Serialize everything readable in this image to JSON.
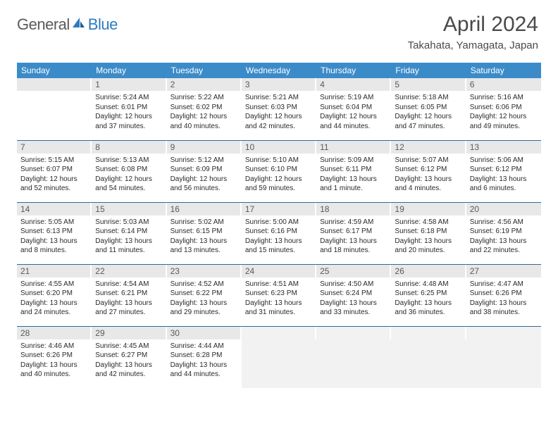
{
  "brand": {
    "part1": "General",
    "part2": "Blue"
  },
  "title": "April 2024",
  "location": "Takahata, Yamagata, Japan",
  "colors": {
    "header_bg": "#3b8bc9",
    "header_text": "#ffffff",
    "row_divider": "#2b6a9e",
    "daynum_bg": "#e8e8e8",
    "empty_bg": "#f2f2f2",
    "logo_gray": "#5a5a5a",
    "logo_blue": "#2b7bbf"
  },
  "weekdays": [
    "Sunday",
    "Monday",
    "Tuesday",
    "Wednesday",
    "Thursday",
    "Friday",
    "Saturday"
  ],
  "weeks": [
    [
      {
        "day": "",
        "lines": []
      },
      {
        "day": "1",
        "lines": [
          "Sunrise: 5:24 AM",
          "Sunset: 6:01 PM",
          "Daylight: 12 hours and 37 minutes."
        ]
      },
      {
        "day": "2",
        "lines": [
          "Sunrise: 5:22 AM",
          "Sunset: 6:02 PM",
          "Daylight: 12 hours and 40 minutes."
        ]
      },
      {
        "day": "3",
        "lines": [
          "Sunrise: 5:21 AM",
          "Sunset: 6:03 PM",
          "Daylight: 12 hours and 42 minutes."
        ]
      },
      {
        "day": "4",
        "lines": [
          "Sunrise: 5:19 AM",
          "Sunset: 6:04 PM",
          "Daylight: 12 hours and 44 minutes."
        ]
      },
      {
        "day": "5",
        "lines": [
          "Sunrise: 5:18 AM",
          "Sunset: 6:05 PM",
          "Daylight: 12 hours and 47 minutes."
        ]
      },
      {
        "day": "6",
        "lines": [
          "Sunrise: 5:16 AM",
          "Sunset: 6:06 PM",
          "Daylight: 12 hours and 49 minutes."
        ]
      }
    ],
    [
      {
        "day": "7",
        "lines": [
          "Sunrise: 5:15 AM",
          "Sunset: 6:07 PM",
          "Daylight: 12 hours and 52 minutes."
        ]
      },
      {
        "day": "8",
        "lines": [
          "Sunrise: 5:13 AM",
          "Sunset: 6:08 PM",
          "Daylight: 12 hours and 54 minutes."
        ]
      },
      {
        "day": "9",
        "lines": [
          "Sunrise: 5:12 AM",
          "Sunset: 6:09 PM",
          "Daylight: 12 hours and 56 minutes."
        ]
      },
      {
        "day": "10",
        "lines": [
          "Sunrise: 5:10 AM",
          "Sunset: 6:10 PM",
          "Daylight: 12 hours and 59 minutes."
        ]
      },
      {
        "day": "11",
        "lines": [
          "Sunrise: 5:09 AM",
          "Sunset: 6:11 PM",
          "Daylight: 13 hours and 1 minute."
        ]
      },
      {
        "day": "12",
        "lines": [
          "Sunrise: 5:07 AM",
          "Sunset: 6:12 PM",
          "Daylight: 13 hours and 4 minutes."
        ]
      },
      {
        "day": "13",
        "lines": [
          "Sunrise: 5:06 AM",
          "Sunset: 6:12 PM",
          "Daylight: 13 hours and 6 minutes."
        ]
      }
    ],
    [
      {
        "day": "14",
        "lines": [
          "Sunrise: 5:05 AM",
          "Sunset: 6:13 PM",
          "Daylight: 13 hours and 8 minutes."
        ]
      },
      {
        "day": "15",
        "lines": [
          "Sunrise: 5:03 AM",
          "Sunset: 6:14 PM",
          "Daylight: 13 hours and 11 minutes."
        ]
      },
      {
        "day": "16",
        "lines": [
          "Sunrise: 5:02 AM",
          "Sunset: 6:15 PM",
          "Daylight: 13 hours and 13 minutes."
        ]
      },
      {
        "day": "17",
        "lines": [
          "Sunrise: 5:00 AM",
          "Sunset: 6:16 PM",
          "Daylight: 13 hours and 15 minutes."
        ]
      },
      {
        "day": "18",
        "lines": [
          "Sunrise: 4:59 AM",
          "Sunset: 6:17 PM",
          "Daylight: 13 hours and 18 minutes."
        ]
      },
      {
        "day": "19",
        "lines": [
          "Sunrise: 4:58 AM",
          "Sunset: 6:18 PM",
          "Daylight: 13 hours and 20 minutes."
        ]
      },
      {
        "day": "20",
        "lines": [
          "Sunrise: 4:56 AM",
          "Sunset: 6:19 PM",
          "Daylight: 13 hours and 22 minutes."
        ]
      }
    ],
    [
      {
        "day": "21",
        "lines": [
          "Sunrise: 4:55 AM",
          "Sunset: 6:20 PM",
          "Daylight: 13 hours and 24 minutes."
        ]
      },
      {
        "day": "22",
        "lines": [
          "Sunrise: 4:54 AM",
          "Sunset: 6:21 PM",
          "Daylight: 13 hours and 27 minutes."
        ]
      },
      {
        "day": "23",
        "lines": [
          "Sunrise: 4:52 AM",
          "Sunset: 6:22 PM",
          "Daylight: 13 hours and 29 minutes."
        ]
      },
      {
        "day": "24",
        "lines": [
          "Sunrise: 4:51 AM",
          "Sunset: 6:23 PM",
          "Daylight: 13 hours and 31 minutes."
        ]
      },
      {
        "day": "25",
        "lines": [
          "Sunrise: 4:50 AM",
          "Sunset: 6:24 PM",
          "Daylight: 13 hours and 33 minutes."
        ]
      },
      {
        "day": "26",
        "lines": [
          "Sunrise: 4:48 AM",
          "Sunset: 6:25 PM",
          "Daylight: 13 hours and 36 minutes."
        ]
      },
      {
        "day": "27",
        "lines": [
          "Sunrise: 4:47 AM",
          "Sunset: 6:26 PM",
          "Daylight: 13 hours and 38 minutes."
        ]
      }
    ],
    [
      {
        "day": "28",
        "lines": [
          "Sunrise: 4:46 AM",
          "Sunset: 6:26 PM",
          "Daylight: 13 hours and 40 minutes."
        ]
      },
      {
        "day": "29",
        "lines": [
          "Sunrise: 4:45 AM",
          "Sunset: 6:27 PM",
          "Daylight: 13 hours and 42 minutes."
        ]
      },
      {
        "day": "30",
        "lines": [
          "Sunrise: 4:44 AM",
          "Sunset: 6:28 PM",
          "Daylight: 13 hours and 44 minutes."
        ]
      },
      {
        "day": "",
        "lines": [],
        "trailing": true
      },
      {
        "day": "",
        "lines": [],
        "trailing": true
      },
      {
        "day": "",
        "lines": [],
        "trailing": true
      },
      {
        "day": "",
        "lines": [],
        "trailing": true
      }
    ]
  ]
}
